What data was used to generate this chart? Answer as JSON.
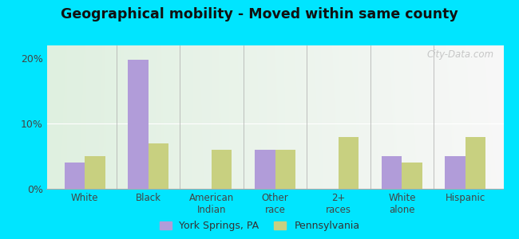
{
  "title": "Geographical mobility - Moved within same county",
  "categories": [
    "White",
    "Black",
    "American\nIndian",
    "Other\nrace",
    "2+\nraces",
    "White\nalone",
    "Hispanic"
  ],
  "york_springs": [
    4.0,
    19.8,
    0.0,
    6.0,
    0.0,
    5.0,
    5.0
  ],
  "pennsylvania": [
    5.0,
    7.0,
    6.0,
    6.0,
    8.0,
    4.0,
    8.0
  ],
  "york_color": "#b19cd9",
  "pa_color": "#c8d080",
  "ylim": [
    0,
    22
  ],
  "yticks": [
    0,
    10,
    20
  ],
  "ytick_labels": [
    "0%",
    "10%",
    "20%"
  ],
  "outer_color": "#00e5ff",
  "legend_york": "York Springs, PA",
  "legend_pa": "Pennsylvania",
  "watermark": "City-Data.com"
}
